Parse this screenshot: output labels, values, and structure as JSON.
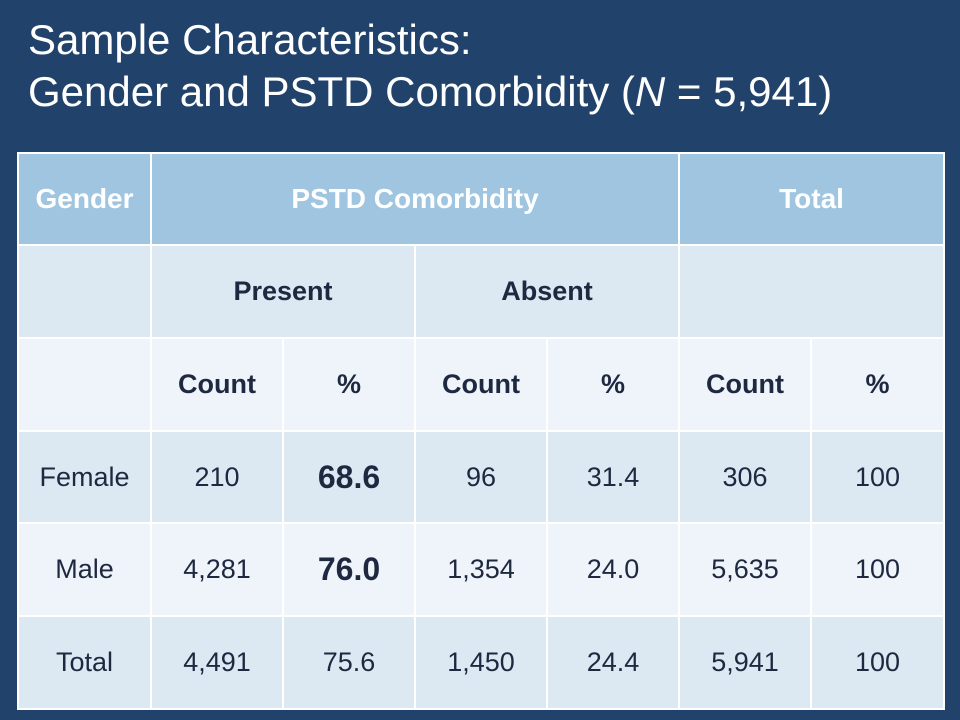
{
  "title": {
    "line1": "Sample Characteristics:",
    "line2_prefix": "Gender and PSTD Comorbidity (",
    "line2_n": "N",
    "line2_suffix": " = 5,941)"
  },
  "table": {
    "headers": {
      "gender": "Gender",
      "comorbidity": "PSTD Comorbidity",
      "total": "Total"
    },
    "subheaders": {
      "present": "Present",
      "absent": "Absent"
    },
    "columns": [
      "Count",
      "%",
      "Count",
      "%",
      "Count",
      "%"
    ],
    "rows": [
      {
        "label": "Female",
        "present_count": "210",
        "present_pct": "68.6",
        "absent_count": "96",
        "absent_pct": "31.4",
        "total_count": "306",
        "total_pct": "100"
      },
      {
        "label": "Male",
        "present_count": "4,281",
        "present_pct": "76.0",
        "absent_count": "1,354",
        "absent_pct": "24.0",
        "total_count": "5,635",
        "total_pct": "100"
      },
      {
        "label": "Total",
        "present_count": "4,491",
        "present_pct": "75.6",
        "absent_count": "1,450",
        "absent_pct": "24.4",
        "total_count": "5,941",
        "total_pct": "100"
      }
    ]
  }
}
